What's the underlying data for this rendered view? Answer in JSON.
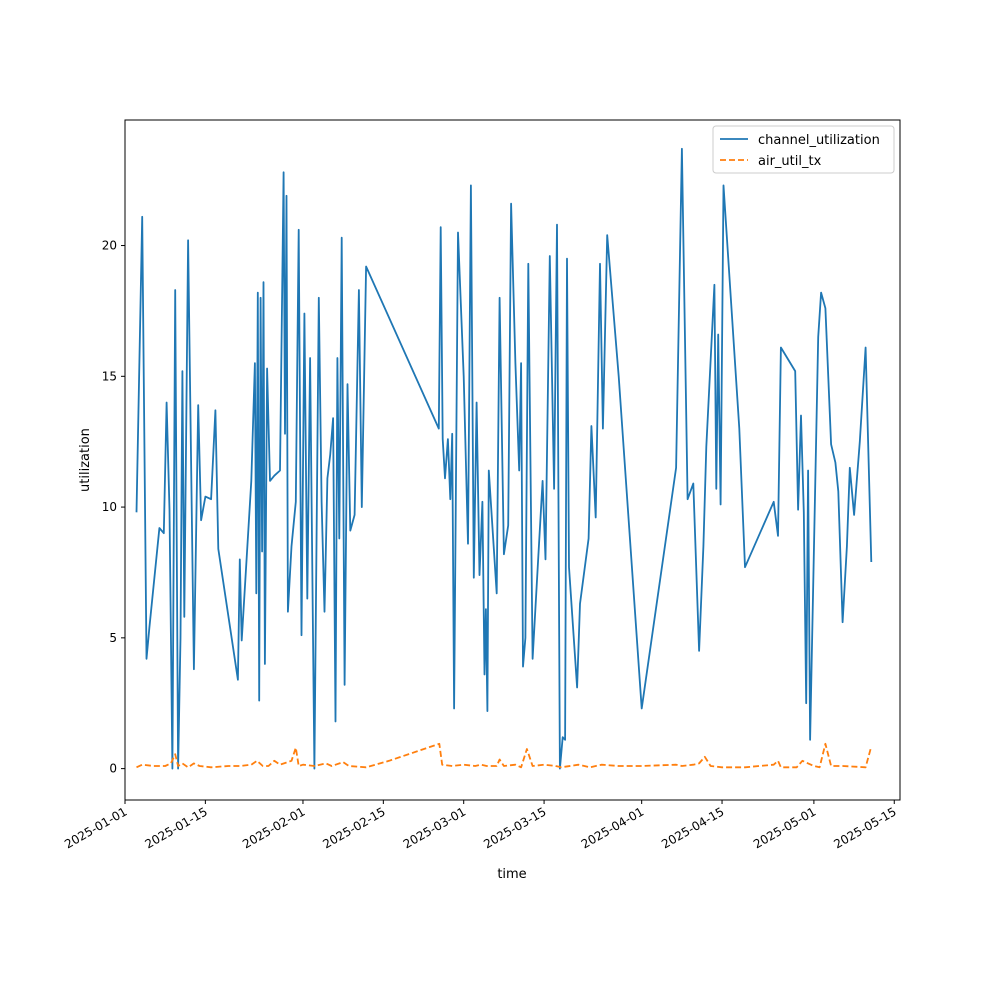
{
  "chart_data": {
    "type": "line",
    "title": "",
    "xlabel": "time",
    "ylabel": "utilization",
    "x_type": "date",
    "xlim": [
      "2025-01-01",
      "2025-05-16"
    ],
    "ylim": [
      -1.2,
      24.8
    ],
    "x_ticks": [
      "2025-01-01",
      "2025-01-15",
      "2025-02-01",
      "2025-02-15",
      "2025-03-01",
      "2025-03-15",
      "2025-04-01",
      "2025-04-15",
      "2025-05-01",
      "2025-05-15"
    ],
    "y_ticks": [
      0,
      5,
      10,
      15,
      20
    ],
    "grid": false,
    "legend_position": "top-right",
    "series": [
      {
        "name": "channel_utilization",
        "color": "#1f77b4",
        "style": "solid",
        "points": [
          [
            "2025-01-03",
            9.8
          ],
          [
            "2025-01-04",
            21.1
          ],
          [
            "2025-01-05",
            4.2
          ],
          [
            "2025-01-05",
            5.4
          ],
          [
            "2025-01-07",
            9.2
          ],
          [
            "2025-01-08",
            9.0
          ],
          [
            "2025-01-08",
            14.0
          ],
          [
            "2025-01-09",
            9.9
          ],
          [
            "2025-01-09",
            0.0
          ],
          [
            "2025-01-10",
            18.3
          ],
          [
            "2025-01-10",
            0.0
          ],
          [
            "2025-01-11",
            5.0
          ],
          [
            "2025-01-11",
            15.2
          ],
          [
            "2025-01-11",
            5.8
          ],
          [
            "2025-01-12",
            20.2
          ],
          [
            "2025-01-13",
            3.8
          ],
          [
            "2025-01-14",
            13.9
          ],
          [
            "2025-01-14",
            9.5
          ],
          [
            "2025-01-15",
            10.4
          ],
          [
            "2025-01-16",
            10.3
          ],
          [
            "2025-01-17",
            13.7
          ],
          [
            "2025-01-17",
            8.4
          ],
          [
            "2025-01-21",
            3.4
          ],
          [
            "2025-01-21",
            8.0
          ],
          [
            "2025-01-21",
            4.9
          ],
          [
            "2025-01-23",
            11.0
          ],
          [
            "2025-01-24",
            15.5
          ],
          [
            "2025-01-24",
            6.7
          ],
          [
            "2025-01-24",
            18.2
          ],
          [
            "2025-01-24",
            2.6
          ],
          [
            "2025-01-25",
            18.0
          ],
          [
            "2025-01-25",
            8.3
          ],
          [
            "2025-01-25",
            18.6
          ],
          [
            "2025-01-25",
            4.0
          ],
          [
            "2025-01-26",
            15.3
          ],
          [
            "2025-01-26",
            11.0
          ],
          [
            "2025-01-27",
            11.2
          ],
          [
            "2025-01-28",
            11.4
          ],
          [
            "2025-01-29",
            22.8
          ],
          [
            "2025-01-29",
            12.8
          ],
          [
            "2025-01-29",
            21.9
          ],
          [
            "2025-01-29",
            6.0
          ],
          [
            "2025-01-30",
            8.5
          ],
          [
            "2025-01-31",
            10.2
          ],
          [
            "2025-01-31",
            20.6
          ],
          [
            "2025-02-01",
            5.1
          ],
          [
            "2025-02-01",
            17.4
          ],
          [
            "2025-02-02",
            6.5
          ],
          [
            "2025-02-02",
            15.7
          ],
          [
            "2025-02-03",
            0.0
          ],
          [
            "2025-02-04",
            18.0
          ],
          [
            "2025-02-04",
            10.2
          ],
          [
            "2025-02-05",
            6.0
          ],
          [
            "2025-02-05",
            11.1
          ],
          [
            "2025-02-06",
            12.0
          ],
          [
            "2025-02-06",
            13.4
          ],
          [
            "2025-02-07",
            1.8
          ],
          [
            "2025-02-07",
            15.7
          ],
          [
            "2025-02-07",
            8.8
          ],
          [
            "2025-02-08",
            20.3
          ],
          [
            "2025-02-08",
            3.2
          ],
          [
            "2025-02-09",
            14.7
          ],
          [
            "2025-02-09",
            9.1
          ],
          [
            "2025-02-10",
            9.7
          ],
          [
            "2025-02-11",
            18.3
          ],
          [
            "2025-02-11",
            10.0
          ],
          [
            "2025-02-12",
            19.2
          ],
          [
            "2025-02-25",
            13.0
          ],
          [
            "2025-02-25",
            20.7
          ],
          [
            "2025-02-25",
            12.6
          ],
          [
            "2025-02-26",
            11.1
          ],
          [
            "2025-02-26",
            12.6
          ],
          [
            "2025-02-27",
            10.3
          ],
          [
            "2025-02-27",
            12.8
          ],
          [
            "2025-02-27",
            2.3
          ],
          [
            "2025-02-28",
            20.5
          ],
          [
            "2025-03-01",
            15.0
          ],
          [
            "2025-03-02",
            8.6
          ],
          [
            "2025-03-02",
            22.3
          ],
          [
            "2025-03-03",
            7.3
          ],
          [
            "2025-03-03",
            14.0
          ],
          [
            "2025-03-04",
            7.4
          ],
          [
            "2025-03-04",
            10.2
          ],
          [
            "2025-03-05",
            3.6
          ],
          [
            "2025-03-05",
            6.1
          ],
          [
            "2025-03-05",
            2.2
          ],
          [
            "2025-03-05",
            11.4
          ],
          [
            "2025-03-07",
            6.7
          ],
          [
            "2025-03-07",
            18.0
          ],
          [
            "2025-03-08",
            8.2
          ],
          [
            "2025-03-09",
            9.3
          ],
          [
            "2025-03-09",
            21.6
          ],
          [
            "2025-03-10",
            15.5
          ],
          [
            "2025-03-11",
            11.4
          ],
          [
            "2025-03-11",
            15.5
          ],
          [
            "2025-03-11",
            3.9
          ],
          [
            "2025-03-12",
            5.0
          ],
          [
            "2025-03-12",
            19.3
          ],
          [
            "2025-03-13",
            4.2
          ],
          [
            "2025-03-14",
            8.1
          ],
          [
            "2025-03-15",
            11.0
          ],
          [
            "2025-03-15",
            8.0
          ],
          [
            "2025-03-16",
            19.6
          ],
          [
            "2025-03-17",
            10.7
          ],
          [
            "2025-03-17",
            20.8
          ],
          [
            "2025-03-18",
            0.0
          ],
          [
            "2025-03-18",
            1.2
          ],
          [
            "2025-03-19",
            1.1
          ],
          [
            "2025-03-19",
            19.5
          ],
          [
            "2025-03-19",
            7.7
          ],
          [
            "2025-03-21",
            3.1
          ],
          [
            "2025-03-21",
            6.3
          ],
          [
            "2025-03-23",
            8.8
          ],
          [
            "2025-03-23",
            13.1
          ],
          [
            "2025-03-24",
            9.6
          ],
          [
            "2025-03-25",
            19.3
          ],
          [
            "2025-03-25",
            13.0
          ],
          [
            "2025-03-26",
            20.4
          ],
          [
            "2025-03-28",
            15.0
          ],
          [
            "2025-04-01",
            2.3
          ],
          [
            "2025-04-07",
            11.5
          ],
          [
            "2025-04-08",
            23.7
          ],
          [
            "2025-04-09",
            10.3
          ],
          [
            "2025-04-10",
            10.9
          ],
          [
            "2025-04-11",
            4.5
          ],
          [
            "2025-04-12",
            8.5
          ],
          [
            "2025-04-12",
            12.3
          ],
          [
            "2025-04-14",
            18.5
          ],
          [
            "2025-04-14",
            10.7
          ],
          [
            "2025-04-14",
            16.6
          ],
          [
            "2025-04-15",
            10.1
          ],
          [
            "2025-04-15",
            22.3
          ],
          [
            "2025-04-18",
            13.0
          ],
          [
            "2025-04-19",
            7.7
          ],
          [
            "2025-04-24",
            10.2
          ],
          [
            "2025-04-25",
            8.9
          ],
          [
            "2025-04-25",
            16.1
          ],
          [
            "2025-04-28",
            15.2
          ],
          [
            "2025-04-28",
            9.9
          ],
          [
            "2025-04-29",
            13.5
          ],
          [
            "2025-04-29",
            9.8
          ],
          [
            "2025-04-30",
            2.5
          ],
          [
            "2025-04-30",
            11.4
          ],
          [
            "2025-04-30",
            1.1
          ],
          [
            "2025-05-02",
            16.5
          ],
          [
            "2025-05-02",
            18.2
          ],
          [
            "2025-05-03",
            17.6
          ],
          [
            "2025-05-04",
            12.4
          ],
          [
            "2025-05-05",
            11.7
          ],
          [
            "2025-05-05",
            10.6
          ],
          [
            "2025-05-06",
            5.6
          ],
          [
            "2025-05-07",
            8.5
          ],
          [
            "2025-05-07",
            11.5
          ],
          [
            "2025-05-08",
            9.7
          ],
          [
            "2025-05-09",
            12.5
          ],
          [
            "2025-05-10",
            16.1
          ],
          [
            "2025-05-11",
            7.9
          ]
        ]
      },
      {
        "name": "air_util_tx",
        "color": "#ff7f0e",
        "style": "dashed",
        "points": [
          [
            "2025-01-03",
            0.05
          ],
          [
            "2025-01-04",
            0.15
          ],
          [
            "2025-01-06",
            0.1
          ],
          [
            "2025-01-08",
            0.1
          ],
          [
            "2025-01-09",
            0.2
          ],
          [
            "2025-01-10",
            0.55
          ],
          [
            "2025-01-10",
            0.1
          ],
          [
            "2025-01-11",
            0.2
          ],
          [
            "2025-01-12",
            0.05
          ],
          [
            "2025-01-13",
            0.2
          ],
          [
            "2025-01-14",
            0.1
          ],
          [
            "2025-01-16",
            0.05
          ],
          [
            "2025-01-19",
            0.1
          ],
          [
            "2025-01-21",
            0.1
          ],
          [
            "2025-01-23",
            0.15
          ],
          [
            "2025-01-24",
            0.3
          ],
          [
            "2025-01-25",
            0.1
          ],
          [
            "2025-01-26",
            0.1
          ],
          [
            "2025-01-27",
            0.3
          ],
          [
            "2025-01-28",
            0.15
          ],
          [
            "2025-01-30",
            0.3
          ],
          [
            "2025-01-31",
            0.8
          ],
          [
            "2025-01-31",
            0.1
          ],
          [
            "2025-02-01",
            0.15
          ],
          [
            "2025-02-03",
            0.1
          ],
          [
            "2025-02-05",
            0.2
          ],
          [
            "2025-02-06",
            0.1
          ],
          [
            "2025-02-08",
            0.25
          ],
          [
            "2025-02-09",
            0.1
          ],
          [
            "2025-02-12",
            0.05
          ],
          [
            "2025-02-16",
            0.3
          ],
          [
            "2025-02-25",
            0.95
          ],
          [
            "2025-02-25",
            0.15
          ],
          [
            "2025-02-27",
            0.1
          ],
          [
            "2025-03-01",
            0.15
          ],
          [
            "2025-03-03",
            0.1
          ],
          [
            "2025-03-04",
            0.15
          ],
          [
            "2025-03-05",
            0.1
          ],
          [
            "2025-03-07",
            0.1
          ],
          [
            "2025-03-07",
            0.35
          ],
          [
            "2025-03-08",
            0.1
          ],
          [
            "2025-03-10",
            0.15
          ],
          [
            "2025-03-11",
            0.05
          ],
          [
            "2025-03-12",
            0.75
          ],
          [
            "2025-03-13",
            0.1
          ],
          [
            "2025-03-15",
            0.15
          ],
          [
            "2025-03-17",
            0.1
          ],
          [
            "2025-03-18",
            0.05
          ],
          [
            "2025-03-21",
            0.15
          ],
          [
            "2025-03-23",
            0.05
          ],
          [
            "2025-03-25",
            0.15
          ],
          [
            "2025-03-28",
            0.1
          ],
          [
            "2025-04-01",
            0.1
          ],
          [
            "2025-04-07",
            0.15
          ],
          [
            "2025-04-08",
            0.1
          ],
          [
            "2025-04-10",
            0.15
          ],
          [
            "2025-04-11",
            0.2
          ],
          [
            "2025-04-12",
            0.45
          ],
          [
            "2025-04-13",
            0.1
          ],
          [
            "2025-04-15",
            0.05
          ],
          [
            "2025-04-19",
            0.05
          ],
          [
            "2025-04-24",
            0.15
          ],
          [
            "2025-04-25",
            0.3
          ],
          [
            "2025-04-25",
            0.05
          ],
          [
            "2025-04-28",
            0.05
          ],
          [
            "2025-04-29",
            0.3
          ],
          [
            "2025-04-30",
            0.2
          ],
          [
            "2025-05-01",
            0.1
          ],
          [
            "2025-05-02",
            0.05
          ],
          [
            "2025-05-03",
            0.95
          ],
          [
            "2025-05-04",
            0.1
          ],
          [
            "2025-05-06",
            0.1
          ],
          [
            "2025-05-10",
            0.05
          ],
          [
            "2025-05-11",
            0.85
          ]
        ]
      }
    ]
  }
}
